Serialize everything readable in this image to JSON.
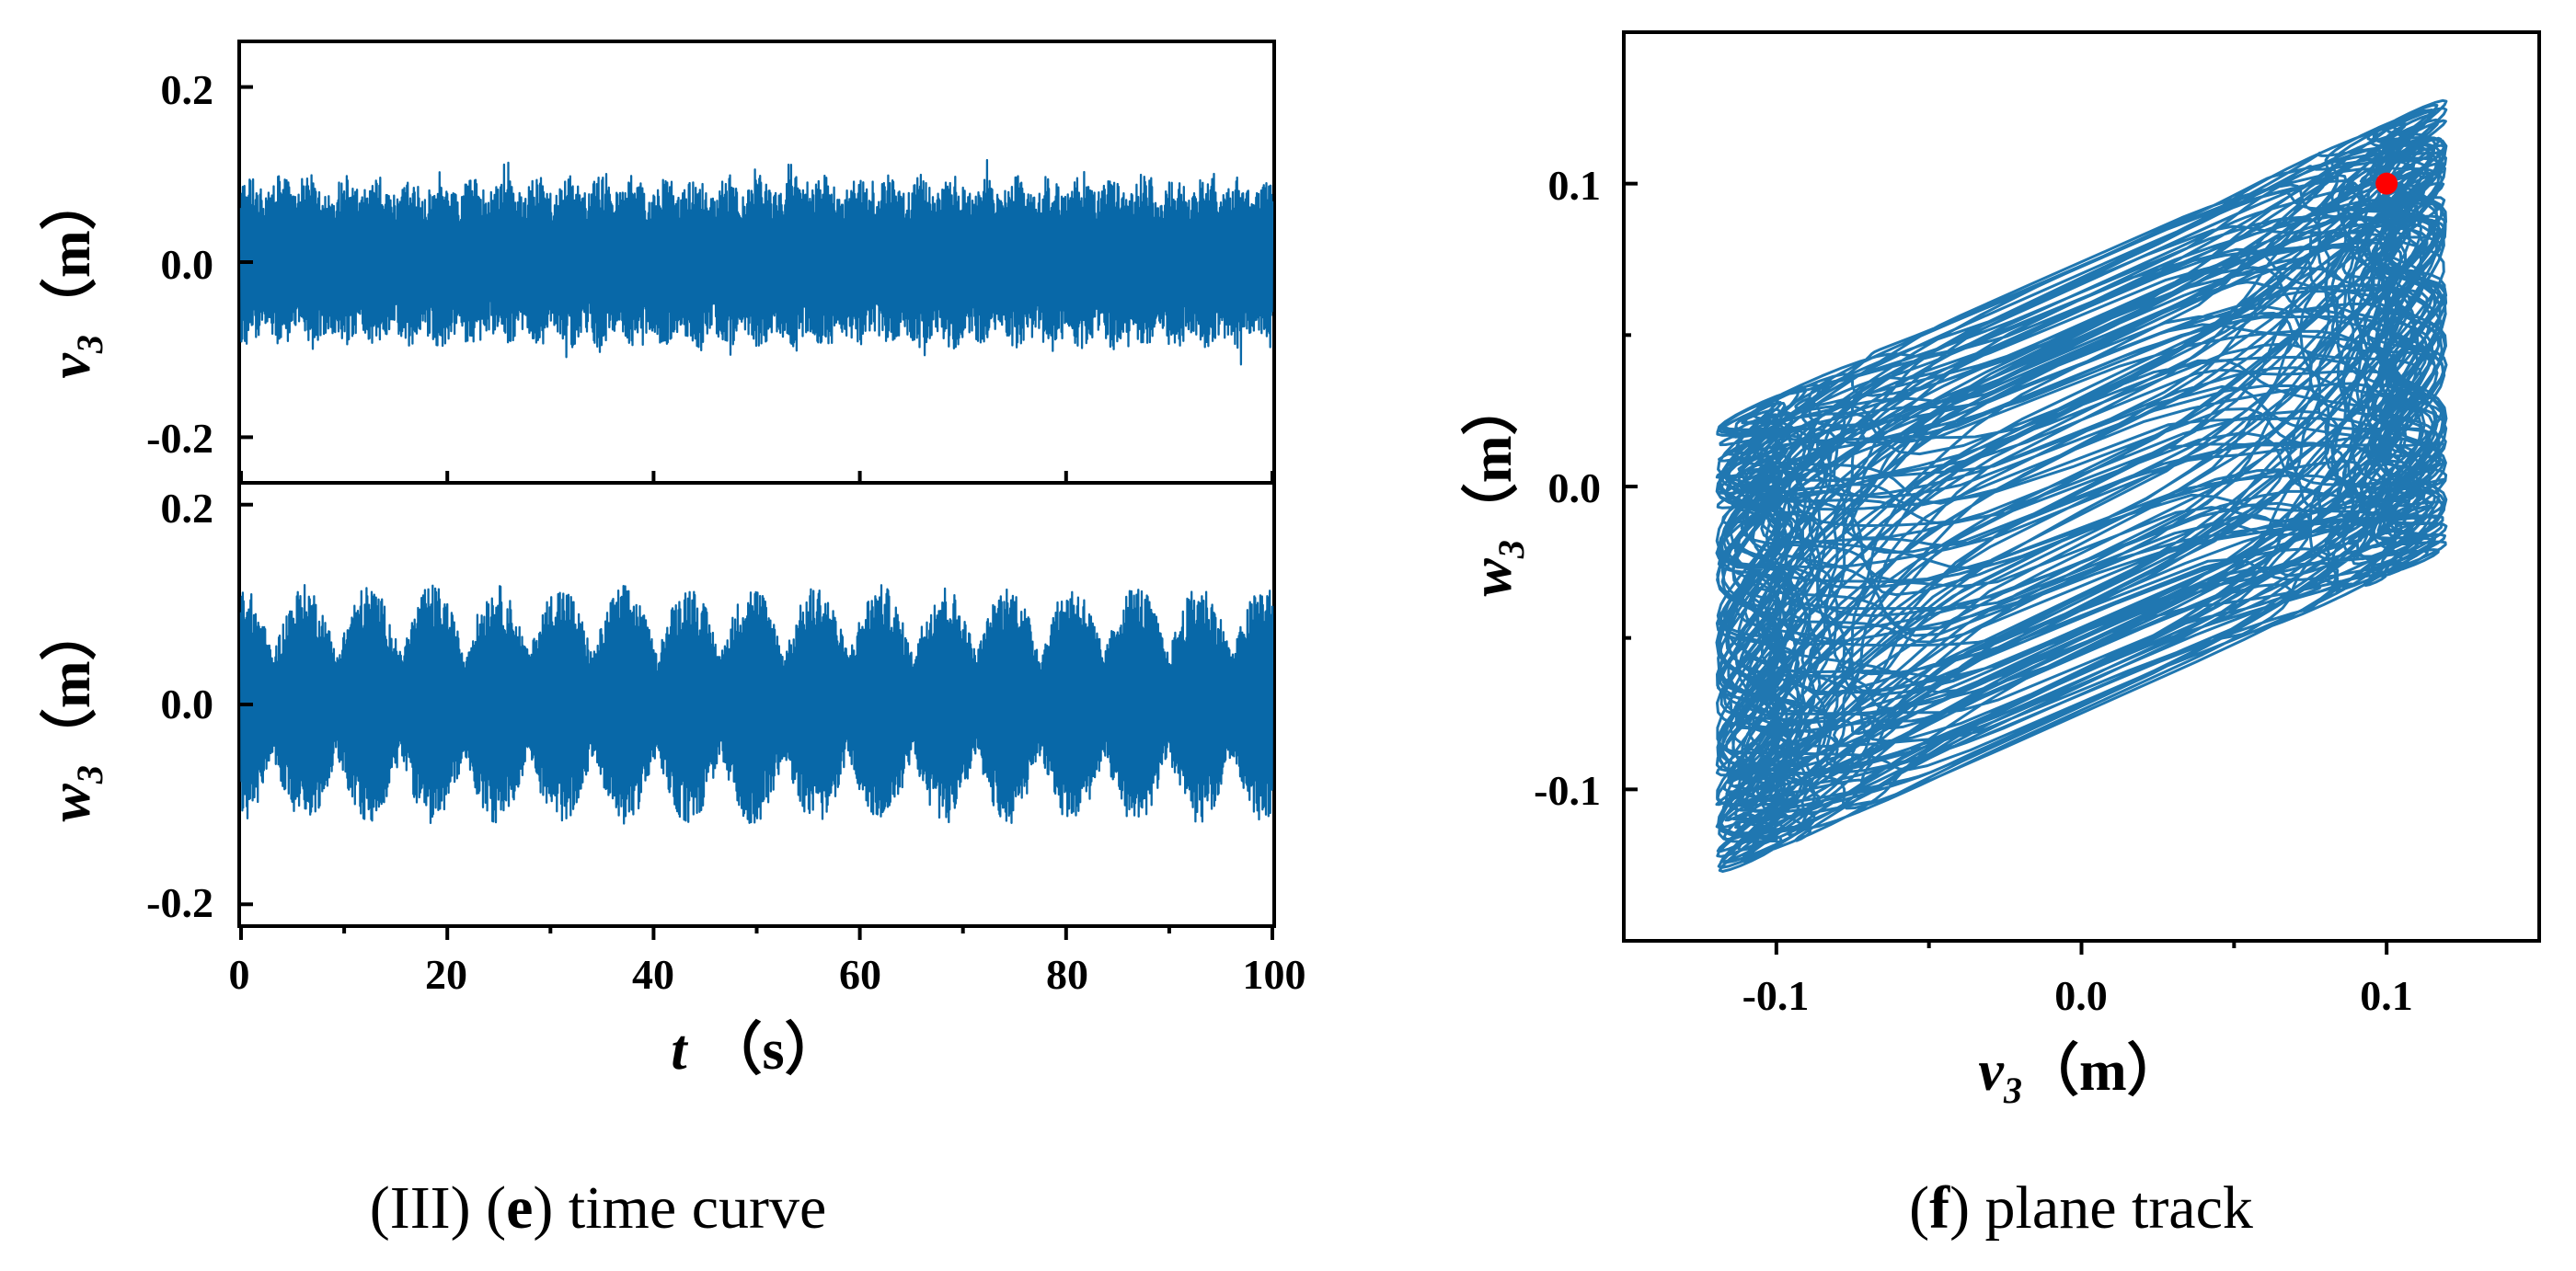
{
  "figure": {
    "caption_e": {
      "prefix": "(III) (",
      "letter": "e",
      "suffix": ") time curve"
    },
    "caption_f": {
      "prefix": "(",
      "letter": "f",
      "suffix": ") plane track"
    },
    "colors": {
      "trace": "#0868A8",
      "marker": "#FF0000",
      "axis": "#000000"
    }
  },
  "chart_data": [
    {
      "id": "v3-time",
      "type": "line",
      "title": "",
      "xlabel": {
        "var": "t",
        "unit": "（s）"
      },
      "ylabel": {
        "var": "v",
        "sub": "3",
        "unit": "（m）"
      },
      "xlim": [
        0,
        100
      ],
      "ylim": [
        -0.25,
        0.25
      ],
      "yticks": [
        -0.2,
        0.0,
        0.2
      ],
      "ytick_labels": [
        "-0.2",
        "0.0",
        "0.2"
      ],
      "xticks": [
        0,
        20,
        40,
        60,
        80,
        100
      ],
      "xtick_labels": [
        "0",
        "20",
        "40",
        "60",
        "80",
        "100"
      ],
      "series": [
        {
          "name": "v3",
          "description": "dense oscillation of near-constant envelope",
          "amplitude": 0.1,
          "peak": 0.12,
          "t_range": [
            0,
            100
          ]
        }
      ]
    },
    {
      "id": "w3-time",
      "type": "line",
      "title": "",
      "xlabel": {
        "var": "t",
        "unit": "（s）"
      },
      "ylabel": {
        "var": "w",
        "sub": "3",
        "unit": "（m）"
      },
      "xlim": [
        0,
        100
      ],
      "ylim": [
        -0.22,
        0.22
      ],
      "yticks": [
        -0.2,
        0.0,
        0.2
      ],
      "ytick_labels": [
        "-0.2",
        "0.0",
        "0.2"
      ],
      "xticks": [
        0,
        20,
        40,
        60,
        80,
        100
      ],
      "xtick_labels": [
        "0",
        "20",
        "40",
        "60",
        "80",
        "100"
      ],
      "series": [
        {
          "name": "w3",
          "description": "beating oscillation, envelope between ~0.05 and ~0.12",
          "amplitude_min": 0.05,
          "amplitude_max": 0.12,
          "beat_period": 6.2,
          "t_range": [
            0,
            100
          ]
        }
      ]
    },
    {
      "id": "phase-plane",
      "type": "line",
      "title": "",
      "xlabel": {
        "var": "v",
        "sub": "3",
        "unit": "（m）"
      },
      "ylabel": {
        "var": "w",
        "sub": "3",
        "unit": "（m）"
      },
      "xlim": [
        -0.15,
        0.15
      ],
      "ylim": [
        -0.15,
        0.15
      ],
      "xticks": [
        -0.1,
        0.0,
        0.1
      ],
      "xtick_labels": [
        "-0.1",
        "0.0",
        "0.1"
      ],
      "yticks": [
        -0.1,
        0.0,
        0.1
      ],
      "ytick_labels": [
        "-0.1",
        "0.0",
        "0.1"
      ],
      "series": [
        {
          "name": "trajectory",
          "description": "dense parallelogram-shaped phase portrait",
          "v_range": [
            -0.122,
            0.122
          ],
          "w_range": [
            -0.127,
            0.127
          ]
        }
      ],
      "marker": {
        "v": 0.1,
        "w": 0.1,
        "color": "#FF0000"
      }
    }
  ]
}
